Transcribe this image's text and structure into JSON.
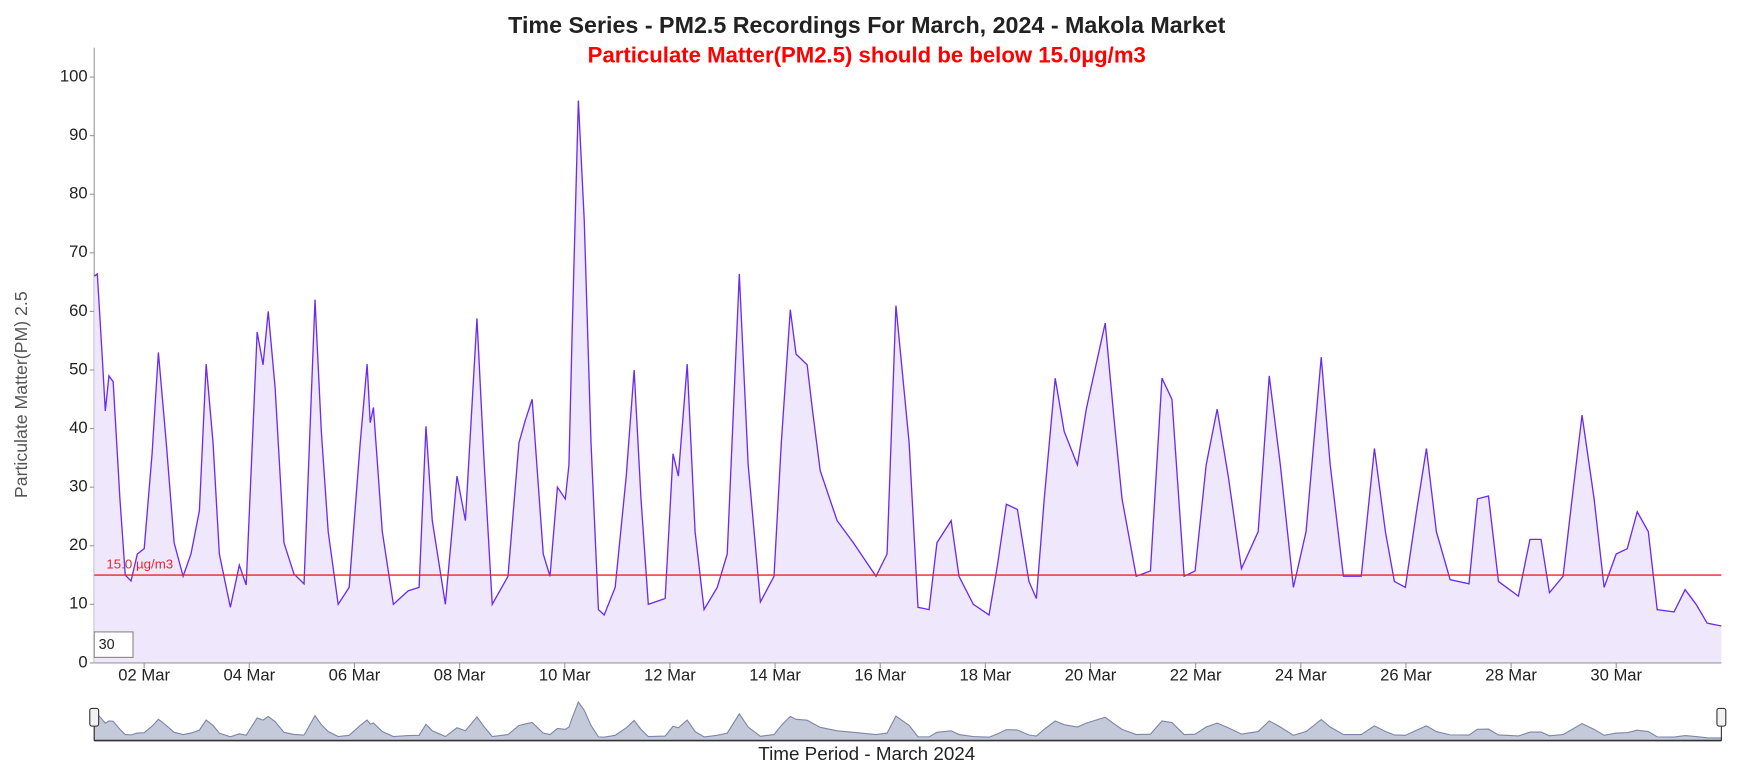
{
  "chart_data": {
    "type": "area",
    "title": "Time Series - PM2.5 Recordings For March, 2024 - Makola Market",
    "subtitle": "Particulate Matter(PM2.5) should be below 15.0µg/m3",
    "y_label": "Particulate Matter(PM) 2.5",
    "x_label": "Time Period - March 2024",
    "range_input": 30,
    "threshold": {
      "value": 15,
      "label": "15.0 µg/m3",
      "color": "#e8262b"
    },
    "color": "#6a2cf0",
    "fill": "#efe8fd",
    "grid": false,
    "xlim": [
      1.05,
      32
    ],
    "ylim": [
      0,
      105
    ],
    "yticks": [
      0,
      10,
      20,
      30,
      40,
      50,
      60,
      70,
      80,
      90,
      100
    ],
    "xticks": [
      {
        "value": 2,
        "label": "02 Mar"
      },
      {
        "value": 4,
        "label": "04 Mar"
      },
      {
        "value": 6,
        "label": "06 Mar"
      },
      {
        "value": 8,
        "label": "08 Mar"
      },
      {
        "value": 10,
        "label": "10 Mar"
      },
      {
        "value": 12,
        "label": "12 Mar"
      },
      {
        "value": 14,
        "label": "14 Mar"
      },
      {
        "value": 16,
        "label": "16 Mar"
      },
      {
        "value": 18,
        "label": "18 Mar"
      },
      {
        "value": 20,
        "label": "20 Mar"
      },
      {
        "value": 22,
        "label": "22 Mar"
      },
      {
        "value": 24,
        "label": "24 Mar"
      },
      {
        "value": 26,
        "label": "26 Mar"
      },
      {
        "value": 28,
        "label": "28 Mar"
      },
      {
        "value": 30,
        "label": "30 Mar"
      }
    ],
    "x": [
      1.05,
      1.11,
      1.2,
      1.26,
      1.33,
      1.41,
      1.54,
      1.64,
      1.75,
      1.87,
      2.0,
      2.15,
      2.27,
      2.42,
      2.57,
      2.74,
      2.89,
      3.05,
      3.18,
      3.31,
      3.43,
      3.64,
      3.81,
      3.94,
      4.15,
      4.26,
      4.36,
      4.49,
      4.66,
      4.85,
      5.04,
      5.25,
      5.37,
      5.5,
      5.69,
      5.9,
      6.11,
      6.24,
      6.3,
      6.36,
      6.53,
      6.74,
      7.02,
      7.23,
      7.36,
      7.48,
      7.73,
      7.95,
      8.11,
      8.33,
      8.47,
      8.62,
      8.92,
      9.13,
      9.25,
      9.38,
      9.59,
      9.72,
      9.86,
      10.01,
      10.08,
      10.14,
      10.26,
      10.37,
      10.5,
      10.64,
      10.75,
      10.96,
      11.17,
      11.32,
      11.45,
      11.59,
      11.91,
      12.06,
      12.16,
      12.33,
      12.48,
      12.65,
      12.9,
      13.09,
      13.32,
      13.49,
      13.72,
      13.98,
      14.12,
      14.29,
      14.4,
      14.61,
      14.71,
      14.86,
      15.18,
      15.49,
      15.92,
      16.13,
      16.3,
      16.55,
      16.72,
      16.93,
      17.08,
      17.35,
      17.5,
      17.77,
      18.07,
      18.23,
      18.4,
      18.61,
      18.83,
      18.97,
      19.12,
      19.33,
      19.5,
      19.75,
      19.92,
      20.28,
      20.45,
      20.6,
      20.87,
      21.14,
      21.36,
      21.55,
      21.78,
      21.99,
      22.2,
      22.41,
      22.62,
      22.87,
      23.19,
      23.4,
      23.61,
      23.86,
      24.1,
      24.39,
      24.56,
      24.81,
      25.15,
      25.4,
      25.61,
      25.78,
      25.99,
      26.2,
      26.39,
      26.58,
      26.84,
      27.2,
      27.36,
      27.57,
      27.76,
      28.14,
      28.36,
      28.57,
      28.73,
      28.99,
      29.16,
      29.35,
      29.58,
      29.77,
      30.0,
      30.21,
      30.4,
      30.61,
      30.78,
      31.1,
      31.31,
      31.52,
      31.73,
      32.0
    ],
    "values": [
      66,
      66.4,
      52.7,
      43,
      49,
      48,
      28,
      15,
      14,
      18.6,
      19.5,
      35.7,
      53,
      37.6,
      20.5,
      14.8,
      18.6,
      26,
      51,
      37.6,
      18.6,
      9.5,
      16.7,
      13.3,
      56.5,
      50.9,
      60,
      47,
      20.5,
      15.2,
      13.5,
      62,
      39.5,
      22.4,
      10,
      12.9,
      37.6,
      51,
      41,
      43.6,
      22.4,
      10,
      12.3,
      12.9,
      40.4,
      24.3,
      10,
      31.9,
      24.3,
      58.8,
      33.8,
      10,
      14.8,
      37.6,
      41.4,
      45,
      18.6,
      14.8,
      30,
      28,
      33.8,
      56.5,
      96,
      75.5,
      37.6,
      9.1,
      8.2,
      12.9,
      31.9,
      50,
      28,
      10,
      11,
      35.7,
      31.9,
      51,
      22.4,
      9.1,
      12.9,
      18.6,
      66.4,
      33.8,
      10.4,
      14.8,
      37.6,
      60.3,
      52.7,
      50.9,
      43.3,
      32.8,
      24.3,
      20.5,
      14.8,
      18.6,
      61,
      37.6,
      9.5,
      9.1,
      20.5,
      24.3,
      14.8,
      10,
      8.2,
      16.7,
      27.1,
      26.2,
      13.9,
      11,
      28,
      48.6,
      39.5,
      33.8,
      43.3,
      58,
      41.4,
      28,
      14.8,
      15.7,
      48.6,
      45,
      14.8,
      15.7,
      33.8,
      43.3,
      31.9,
      16.1,
      22.4,
      49,
      33.8,
      12.9,
      22.4,
      52.2,
      33.8,
      14.8,
      14.8,
      36.6,
      22.4,
      13.9,
      12.9,
      25.8,
      36.6,
      22.4,
      14.2,
      13.5,
      28,
      28.5,
      13.9,
      11.4,
      21.1,
      21.1,
      12,
      14.8,
      28,
      42.3,
      28,
      12.9,
      18.6,
      19.5,
      25.8,
      22.4,
      9.1,
      8.7,
      12.5,
      10,
      6.8,
      6.3
    ]
  }
}
